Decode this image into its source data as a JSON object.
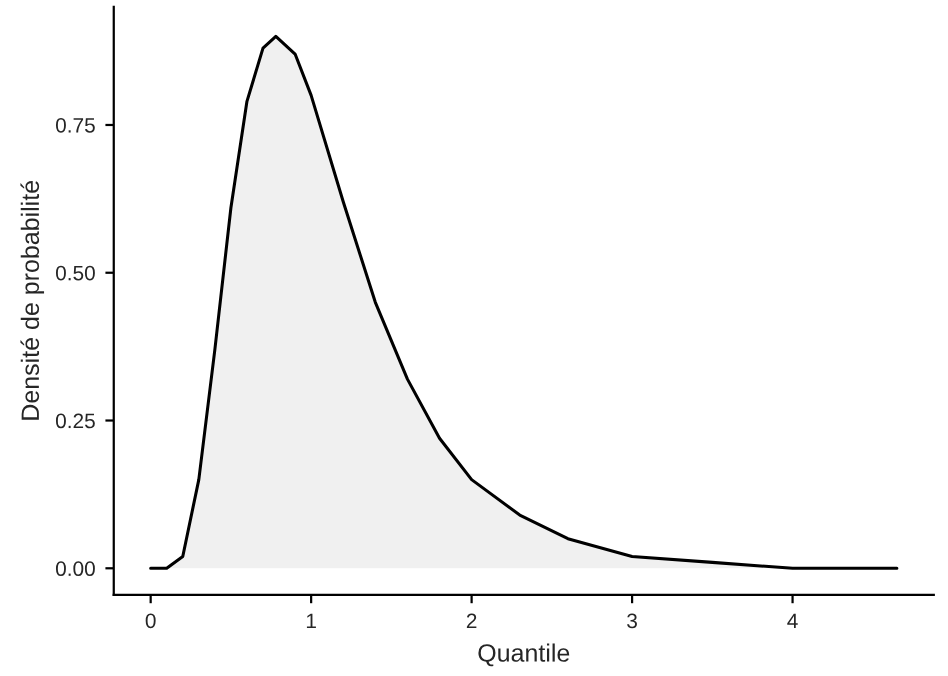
{
  "chart_data": {
    "type": "area",
    "xlabel": "Quantile",
    "ylabel": "Densité de probabilité",
    "x": [
      0,
      0.1,
      0.2,
      0.3,
      0.4,
      0.5,
      0.6,
      0.7,
      0.78,
      0.9,
      1.0,
      1.2,
      1.4,
      1.6,
      1.8,
      2.0,
      2.3,
      2.6,
      3.0,
      3.5,
      4.0,
      4.65
    ],
    "series": [
      {
        "color": "#000000",
        "values": [
          0,
          0,
          0.02,
          0.15,
          0.37,
          0.61,
          0.79,
          0.88,
          0.9,
          0.87,
          0.8,
          0.62,
          0.45,
          0.32,
          0.22,
          0.15,
          0.09,
          0.05,
          0.02,
          0.01,
          0,
          0
        ]
      }
    ],
    "xlim": [
      -0.23,
      4.88
    ],
    "ylim": [
      -0.045,
      0.95
    ],
    "xticks": [
      0,
      1,
      2,
      3,
      4
    ],
    "yticks": [
      {
        "value": 0,
        "label": "0.00"
      },
      {
        "value": 0.25,
        "label": "0.25"
      },
      {
        "value": 0.5,
        "label": "0.50"
      },
      {
        "value": 0.75,
        "label": "0.75"
      }
    ],
    "grid": false,
    "legend": false
  }
}
